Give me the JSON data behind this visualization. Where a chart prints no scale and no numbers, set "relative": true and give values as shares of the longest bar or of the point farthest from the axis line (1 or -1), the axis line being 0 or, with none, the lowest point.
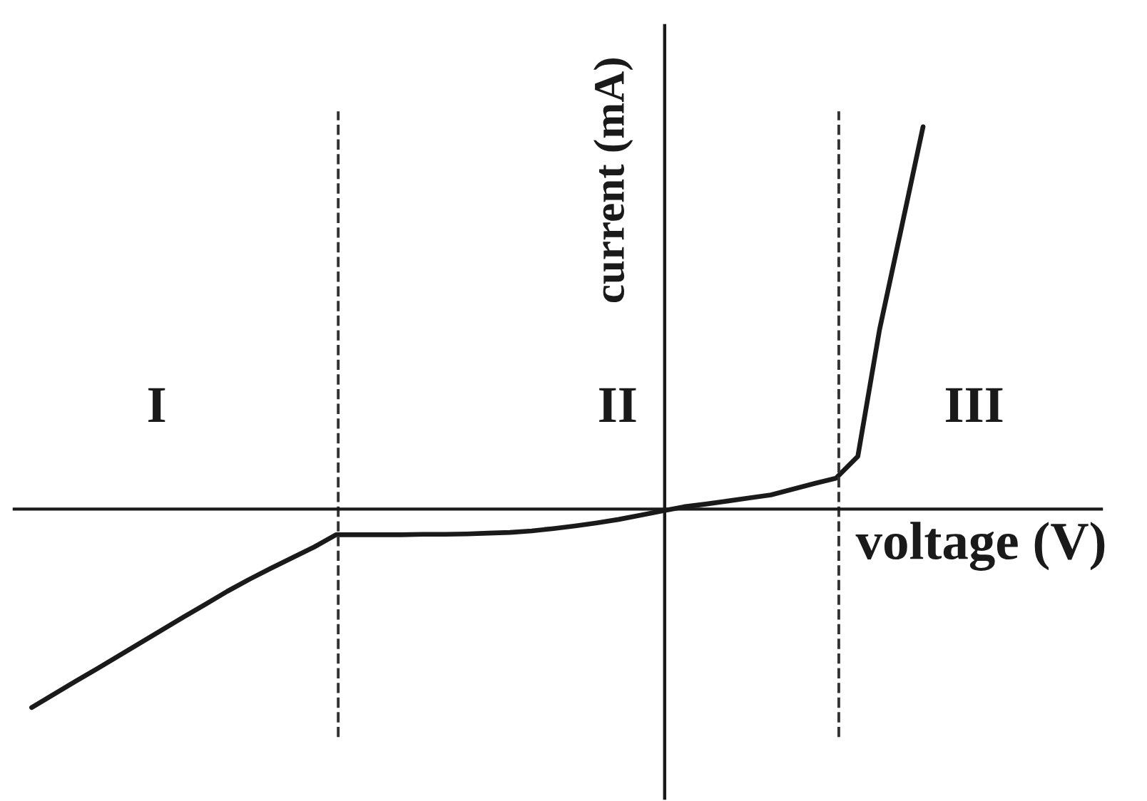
{
  "chart_data": {
    "type": "line",
    "relative": true,
    "xlabel": "voltage (V)",
    "ylabel": "current (mA)",
    "categories": [
      null,
      null,
      null,
      null,
      null,
      null,
      null,
      null,
      null,
      null,
      null,
      null,
      null,
      null,
      null,
      null,
      null,
      null,
      null,
      null,
      null,
      null,
      null,
      null,
      null,
      null,
      null,
      null,
      null,
      null,
      null,
      null,
      null,
      null,
      null,
      null,
      null,
      null,
      null,
      null,
      null,
      null
    ],
    "series": [
      {
        "color": "#1a1a1a",
        "values": [
          -0.519,
          -0.485,
          -0.451,
          -0.418,
          -0.384,
          -0.35,
          -0.316,
          -0.282,
          -0.249,
          -0.215,
          -0.184,
          -0.155,
          -0.127,
          -0.099,
          -0.067,
          -0.067,
          -0.067,
          -0.067,
          -0.066,
          -0.066,
          -0.065,
          -0.063,
          -0.061,
          -0.057,
          -0.051,
          -0.044,
          -0.036,
          -0.027,
          -0.016,
          -0.005,
          0.006,
          0.013,
          0.021,
          0.029,
          0.037,
          0.052,
          0.067,
          0.081,
          0.138,
          0.47,
          0.734,
          1
        ]
      }
    ],
    "annotations": [
      "I",
      "II",
      "III"
    ],
    "line_style": "solid"
  }
}
